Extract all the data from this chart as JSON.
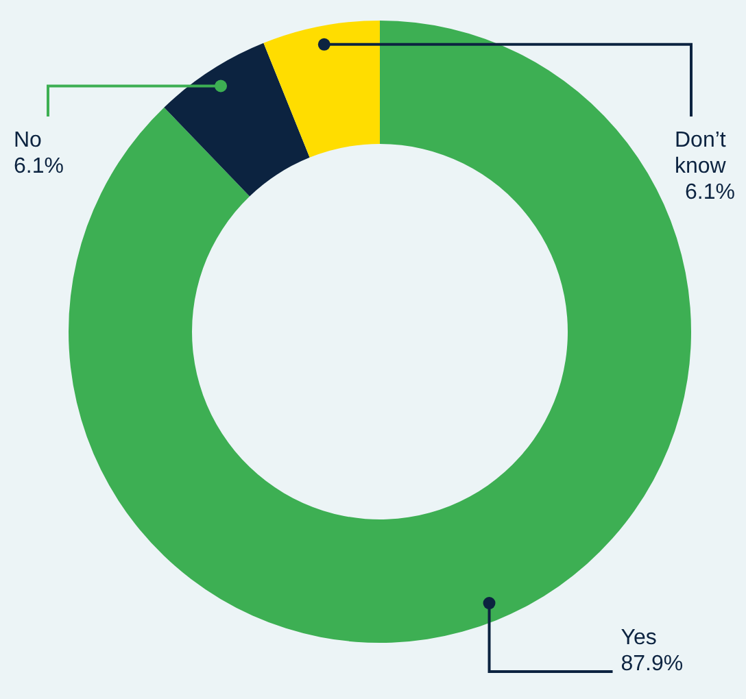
{
  "chart_data": {
    "type": "donut",
    "categories": [
      "Yes",
      "No",
      "Don’t know"
    ],
    "values": [
      87.9,
      6.1,
      6.1
    ],
    "colors": [
      "#3daf53",
      "#0c2340",
      "#ffdd00"
    ],
    "value_labels": [
      "87.9%",
      "6.1%",
      "6.1%"
    ],
    "legend": false
  }
}
